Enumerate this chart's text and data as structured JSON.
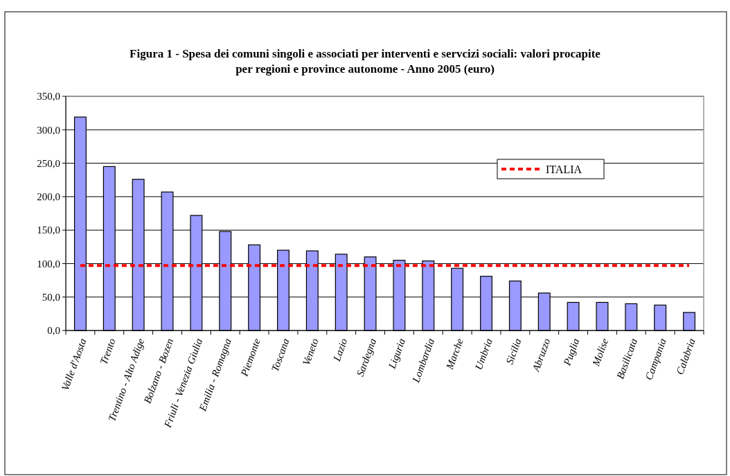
{
  "chart_data": {
    "type": "bar",
    "title": "Figura 1 - Spesa dei comuni singoli e associati per interventi e servcizi sociali: valori procapite per regioni e province autonome - Anno 2005 (euro)",
    "categories": [
      "Valle d'Aosta",
      "Trento",
      "Trentino - Alto Adige",
      "Bolzano - Bozen",
      "Friuli - Venezia Giulia",
      "Emilia - Romagna",
      "Piemonte",
      "Toscana",
      "Veneto",
      "Lazio",
      "Sardegna",
      "Liguria",
      "Lombardia",
      "Marche",
      "Umbria",
      "Sicilia",
      "Abruzzo",
      "Puglia",
      "Molise",
      "Basilicata",
      "Campania",
      "Calabria"
    ],
    "series": [
      {
        "color": "#9999ff",
        "values": [
          319,
          245,
          226,
          207,
          172,
          148,
          128,
          120,
          119,
          114,
          110,
          105,
          104,
          93,
          81,
          74,
          56,
          42,
          42,
          40,
          38,
          27
        ]
      },
      {
        "type": "line",
        "name": "ITALIA",
        "color": "#ff0000",
        "line_style": "dashed",
        "values": [
          97,
          97,
          97,
          97,
          97,
          97,
          97,
          97,
          97,
          97,
          97,
          97,
          97,
          97,
          97,
          97,
          97,
          97,
          97,
          97,
          97,
          97
        ]
      }
    ],
    "ylim": [
      0,
      350
    ],
    "yticks": [
      {
        "value": 0,
        "label": "0,0"
      },
      {
        "value": 50,
        "label": "50,0"
      },
      {
        "value": 100,
        "label": "100,0"
      },
      {
        "value": 150,
        "label": "150,0"
      },
      {
        "value": 200,
        "label": "200,0"
      },
      {
        "value": 250,
        "label": "250,0"
      },
      {
        "value": 300,
        "label": "300,0"
      },
      {
        "value": 350,
        "label": "350,0"
      }
    ],
    "grid": "y",
    "legend": "right"
  }
}
